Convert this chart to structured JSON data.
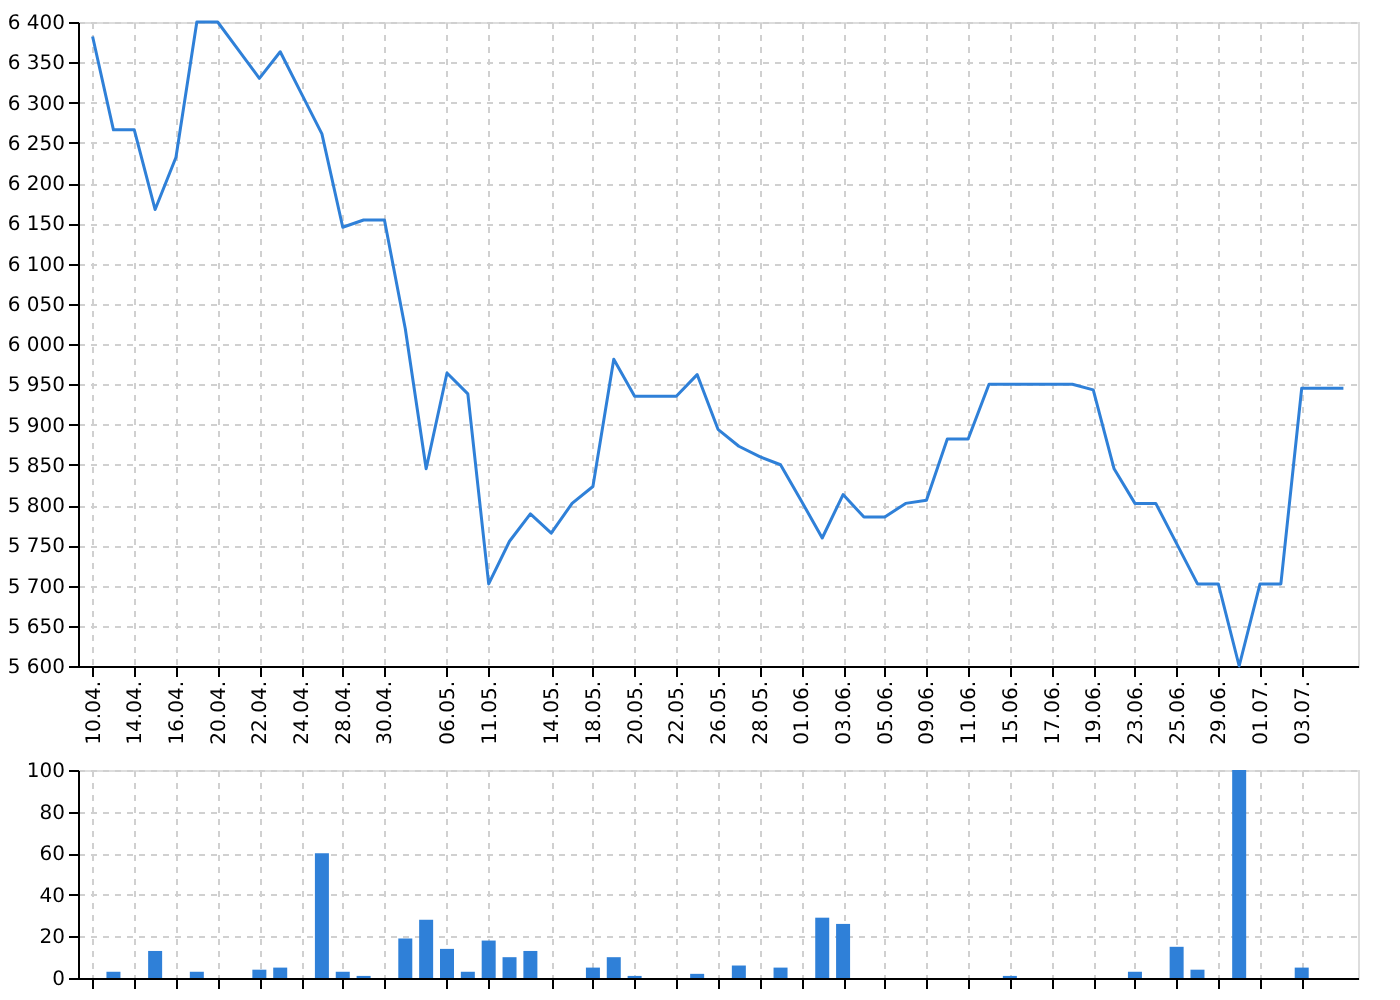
{
  "chart_data": [
    {
      "type": "line",
      "categories": [
        "10.04.",
        null,
        "14.04.",
        null,
        "16.04.",
        null,
        "20.04.",
        null,
        "22.04.",
        null,
        "24.04.",
        null,
        "28.04.",
        null,
        "30.04.",
        null,
        null,
        "06.05.",
        null,
        "11.05.",
        null,
        null,
        "14.05.",
        null,
        "18.05.",
        null,
        "20.05.",
        null,
        "22.05.",
        null,
        "26.05.",
        null,
        "28.05.",
        null,
        "01.06.",
        null,
        "03.06.",
        null,
        "05.06.",
        null,
        "09.06.",
        null,
        "11.06.",
        null,
        "15.06.",
        null,
        "17.06.",
        null,
        "19.06.",
        null,
        "23.06.",
        null,
        "25.06.",
        null,
        "29.06.",
        null,
        "01.07.",
        null,
        "03.07.",
        null,
        null
      ],
      "series": [
        {
          "color": "#2f80d8",
          "values": [
            6382,
            6266,
            6266,
            6167,
            6232,
            6400,
            6400,
            6365,
            6330,
            6363,
            6312,
            6261,
            6145,
            6154,
            6154,
            6019,
            5845,
            5964,
            5938,
            5702,
            5755,
            5789,
            5765,
            5802,
            5823,
            5981,
            5935,
            5935,
            5935,
            5962,
            5894,
            5873,
            5860,
            5850,
            5805,
            5759,
            5813,
            5785,
            5785,
            5802,
            5806,
            5882,
            5882,
            5950,
            5950,
            5950,
            5950,
            5950,
            5943,
            5845,
            5802,
            5802,
            5752,
            5702,
            5702,
            5600,
            5702,
            5702,
            5945,
            5945,
            5945
          ]
        }
      ],
      "ylim": [
        5600,
        6400
      ],
      "yticks": [
        {
          "value": 5600,
          "label": "5 600"
        },
        {
          "value": 5650,
          "label": "5 650"
        },
        {
          "value": 5700,
          "label": "5 700"
        },
        {
          "value": 5750,
          "label": "5 750"
        },
        {
          "value": 5800,
          "label": "5 800"
        },
        {
          "value": 5850,
          "label": "5 850"
        },
        {
          "value": 5900,
          "label": "5 900"
        },
        {
          "value": 5950,
          "label": "5 950"
        },
        {
          "value": 6000,
          "label": "6 000"
        },
        {
          "value": 6050,
          "label": "6 050"
        },
        {
          "value": 6100,
          "label": "6 100"
        },
        {
          "value": 6150,
          "label": "6 150"
        },
        {
          "value": 6200,
          "label": "6 200"
        },
        {
          "value": 6250,
          "label": "6 250"
        },
        {
          "value": 6300,
          "label": "6 300"
        },
        {
          "value": 6350,
          "label": "6 350"
        },
        {
          "value": 6400,
          "label": "6 400"
        }
      ],
      "grid": true,
      "marker": "none",
      "line_style": "solid"
    },
    {
      "type": "bar",
      "categories": [
        "10.04.",
        null,
        "14.04.",
        null,
        "16.04.",
        null,
        "20.04.",
        null,
        "22.04.",
        null,
        "24.04.",
        null,
        "28.04.",
        null,
        "30.04.",
        null,
        null,
        "06.05.",
        null,
        "11.05.",
        null,
        null,
        "14.05.",
        null,
        "18.05.",
        null,
        "20.05.",
        null,
        "22.05.",
        null,
        "26.05.",
        null,
        "28.05.",
        null,
        "01.06.",
        null,
        "03.06.",
        null,
        "05.06.",
        null,
        "09.06.",
        null,
        "11.06.",
        null,
        "15.06.",
        null,
        "17.06.",
        null,
        "19.06.",
        null,
        "23.06.",
        null,
        "25.06.",
        null,
        "29.06.",
        null,
        "01.07.",
        null,
        "03.07.",
        null,
        null
      ],
      "series": [
        {
          "color": "#2f80d8",
          "values": [
            0,
            3,
            0,
            13,
            0,
            3,
            0,
            0,
            4,
            5,
            0,
            60,
            3,
            1,
            0,
            19,
            28,
            14,
            3,
            18,
            10,
            13,
            0,
            0,
            5,
            10,
            1,
            0,
            0,
            2,
            0,
            6,
            0,
            5,
            0,
            29,
            26,
            0,
            0,
            0,
            0,
            0,
            0,
            0,
            1,
            0,
            0,
            0,
            0,
            0,
            3,
            0,
            15,
            4,
            0,
            100,
            0,
            0,
            5,
            0,
            0
          ]
        }
      ],
      "ylim": [
        0,
        100
      ],
      "yticks": [
        0,
        20,
        40,
        60,
        80,
        100
      ],
      "grid": true,
      "tick_labels": "y"
    }
  ]
}
